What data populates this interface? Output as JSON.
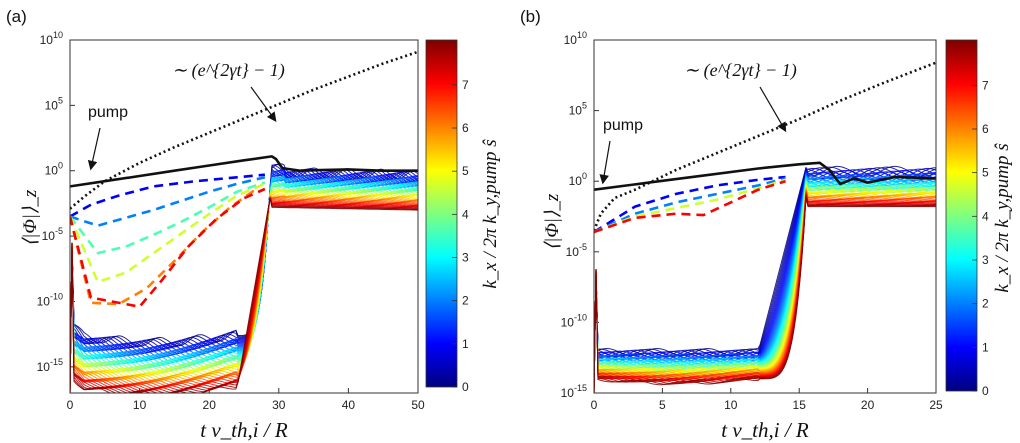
{
  "chart_data": [
    {
      "type": "line",
      "panel_label": "(a)",
      "xlabel": "t v_th,i / R",
      "ylabel": "⟨|Φ|⟩_z",
      "xlim": [
        0,
        50
      ],
      "ylim_log10": [
        -17,
        10
      ],
      "yscale": "log",
      "x_ticks": [
        0,
        10,
        20,
        30,
        40,
        50
      ],
      "y_tick_exponents": [
        -15,
        -10,
        -5,
        0,
        5,
        10
      ],
      "colorbar": {
        "label": "k_x / 2π k_y,pump ŝ",
        "ticks": [
          0,
          1,
          2,
          3,
          4,
          5,
          6,
          7
        ],
        "range": [
          0,
          7.9
        ],
        "colormap": "jet"
      },
      "annotations": {
        "pump": "pump",
        "growth": "∼ (e^{2γt} − 1)"
      },
      "series": [
        {
          "values": [
            [
              0,
              -1.2
            ],
            [
              5,
              -0.8
            ],
            [
              10,
              -0.4
            ],
            [
              15,
              0
            ],
            [
              20,
              0.4
            ],
            [
              25,
              0.8
            ],
            [
              29,
              1.1
            ],
            [
              29.6,
              0.9
            ],
            [
              30.5,
              0.2
            ],
            [
              33,
              0
            ],
            [
              36,
              0.05
            ],
            [
              40,
              0.1
            ],
            [
              45,
              0
            ],
            [
              50,
              0
            ]
          ]
        },
        {
          "values": [
            [
              0,
              -2.9
            ],
            [
              2,
              -2.0
            ],
            [
              5,
              -0.8
            ],
            [
              10,
              0.6
            ],
            [
              15,
              1.8
            ],
            [
              20,
              2.9
            ],
            [
              25,
              4.0
            ],
            [
              30,
              5.1
            ],
            [
              35,
              6.2
            ],
            [
              40,
              7.2
            ],
            [
              45,
              8.2
            ],
            [
              50,
              9.1
            ]
          ]
        },
        {
          "values": [
            [
              0,
              -3.5
            ],
            [
              3,
              -2.6
            ],
            [
              7,
              -1.9
            ],
            [
              12,
              -1.2
            ],
            [
              18,
              -0.8
            ],
            [
              24,
              -0.5
            ],
            [
              28,
              -0.3
            ]
          ]
        },
        {
          "values": [
            [
              0,
              -3.5
            ],
            [
              4,
              -4.2
            ],
            [
              8,
              -3.6
            ],
            [
              12,
              -3.0
            ],
            [
              16,
              -2.3
            ],
            [
              20,
              -1.6
            ],
            [
              24,
              -1.0
            ],
            [
              28,
              -0.5
            ]
          ]
        },
        {
          "values": [
            [
              0,
              -3.5
            ],
            [
              4,
              -6.3
            ],
            [
              8,
              -5.8
            ],
            [
              12,
              -4.9
            ],
            [
              16,
              -3.9
            ],
            [
              20,
              -2.8
            ],
            [
              24,
              -1.6
            ],
            [
              28,
              -0.9
            ]
          ]
        },
        {
          "values": [
            [
              0,
              -3.5
            ],
            [
              4,
              -8.5
            ],
            [
              8,
              -7.8
            ],
            [
              12,
              -6.3
            ],
            [
              16,
              -4.8
            ],
            [
              20,
              -3.3
            ],
            [
              24,
              -1.9
            ],
            [
              28,
              -1.0
            ]
          ]
        },
        {
          "values": [
            [
              0,
              -3.5
            ],
            [
              3,
              -10.1
            ],
            [
              7,
              -10.2
            ],
            [
              11,
              -9.0
            ],
            [
              15,
              -6.9
            ],
            [
              19,
              -4.7
            ],
            [
              23,
              -2.8
            ],
            [
              27,
              -1.3
            ]
          ]
        },
        {
          "values": [
            [
              0,
              -3.5
            ],
            [
              3,
              -9.7
            ],
            [
              8,
              -10.2
            ],
            [
              10,
              -10.4
            ],
            [
              13,
              -8.5
            ],
            [
              17,
              -5.8
            ],
            [
              21,
              -3.7
            ],
            [
              25,
              -2.1
            ],
            [
              28,
              -1.4
            ]
          ]
        }
      ]
    },
    {
      "type": "line",
      "panel_label": "(b)",
      "xlabel": "t v_th,i / R",
      "ylabel": "⟨|Φ|⟩_z",
      "xlim": [
        0,
        25
      ],
      "ylim_log10": [
        -15,
        10
      ],
      "yscale": "log",
      "x_ticks": [
        0,
        5,
        10,
        15,
        20,
        25
      ],
      "y_tick_exponents": [
        -15,
        -10,
        -5,
        0,
        5,
        10
      ],
      "colorbar": {
        "label": "k_x / 2π k_y,pump ŝ",
        "ticks": [
          0,
          1,
          2,
          3,
          4,
          5,
          6,
          7
        ],
        "range": [
          0,
          7.9
        ],
        "colormap": "jet"
      },
      "annotations": {
        "pump": "pump",
        "growth": "∼ (e^{2γt} − 1)"
      },
      "series": [
        {
          "values": [
            [
              0,
              -0.6
            ],
            [
              4,
              -0.1
            ],
            [
              8,
              0.4
            ],
            [
              12,
              0.9
            ],
            [
              15,
              1.2
            ],
            [
              16.5,
              1.3
            ],
            [
              17.2,
              0.8
            ],
            [
              18,
              -0.2
            ],
            [
              19,
              0.2
            ],
            [
              20,
              -0.1
            ],
            [
              22,
              0.3
            ],
            [
              25,
              0.2
            ]
          ]
        },
        {
          "values": [
            [
              0,
              -3.5
            ],
            [
              0.5,
              -2.3
            ],
            [
              1.5,
              -1.2
            ],
            [
              3,
              -0.6
            ],
            [
              6,
              0.8
            ],
            [
              9,
              2.0
            ],
            [
              12,
              3.2
            ],
            [
              15,
              4.4
            ],
            [
              18,
              5.7
            ],
            [
              21,
              6.9
            ],
            [
              25,
              8.4
            ]
          ]
        },
        {
          "values": [
            [
              0,
              -3.6
            ],
            [
              3,
              -1.8
            ],
            [
              6,
              -0.9
            ],
            [
              9,
              -0.3
            ],
            [
              12,
              0.1
            ],
            [
              14,
              0.3
            ]
          ]
        },
        {
          "values": [
            [
              0,
              -3.6
            ],
            [
              3,
              -2.3
            ],
            [
              6,
              -1.5
            ],
            [
              9,
              -0.9
            ],
            [
              12,
              -0.3
            ],
            [
              14,
              0.2
            ]
          ]
        },
        {
          "values": [
            [
              0,
              -3.6
            ],
            [
              3,
              -2.5
            ],
            [
              6,
              -1.9
            ],
            [
              9,
              -1.3
            ],
            [
              12,
              -0.5
            ],
            [
              14,
              0.1
            ]
          ]
        },
        {
          "values": [
            [
              0,
              -3.6
            ],
            [
              3,
              -2.6
            ],
            [
              6,
              -2.3
            ],
            [
              8,
              -2.4
            ],
            [
              10,
              -1.5
            ],
            [
              12,
              -0.6
            ],
            [
              14,
              0
            ]
          ]
        }
      ]
    }
  ]
}
